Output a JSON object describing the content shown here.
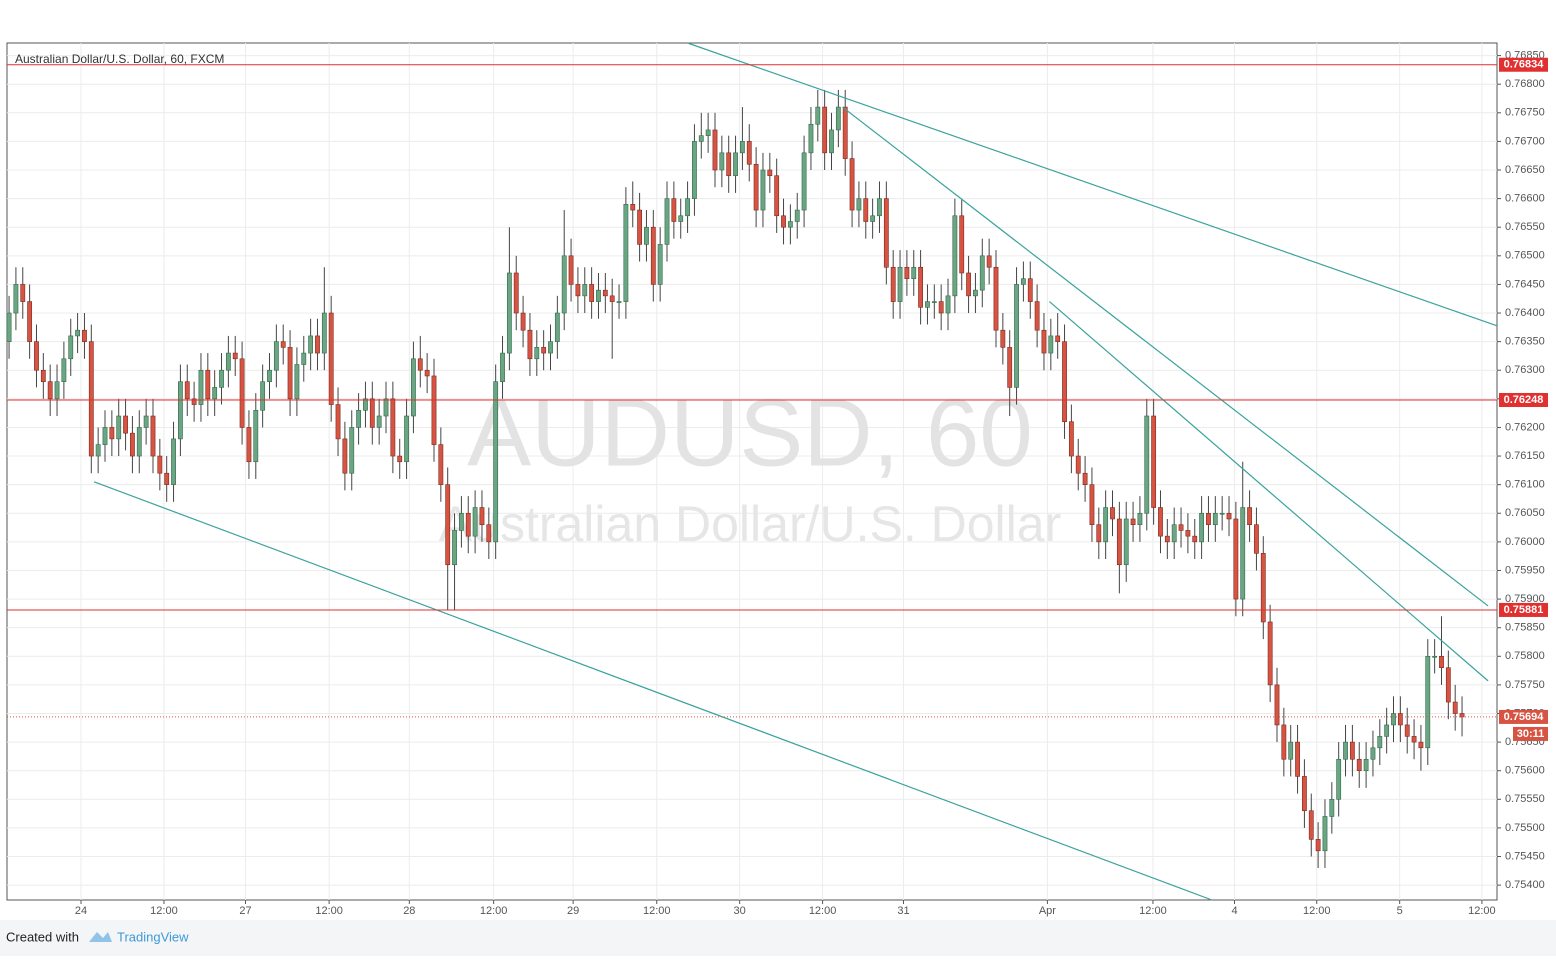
{
  "chart_data": {
    "type": "candlestick",
    "title": "Australian Dollar/U.S. Dollar, 60, FXCM",
    "watermark": "AUDUSD, 60",
    "watermark_subtitle": "Australian Dollar/U.S. Dollar",
    "footer_prefix": "Created with",
    "footer_brand": "TradingView",
    "up_color": "#6ba583",
    "down_color": "#d75442",
    "open": [
      0.7635,
      0.764,
      0.7645,
      0.7642,
      0.7635,
      0.763,
      0.7628,
      0.7625,
      0.7628,
      0.7632,
      0.7636,
      0.7637,
      0.7635,
      0.7615,
      0.7617,
      0.762,
      0.7618,
      0.7622,
      0.7619,
      0.7615,
      0.762,
      0.7622,
      0.7615,
      0.7612,
      0.761,
      0.7618,
      0.7628,
      0.7625,
      0.7624,
      0.763,
      0.7625,
      0.7627,
      0.763,
      0.7633,
      0.7632,
      0.762,
      0.7614,
      0.7623,
      0.7628,
      0.763,
      0.7635,
      0.7634,
      0.7625,
      0.7631,
      0.7633,
      0.7636,
      0.7633,
      0.764,
      0.7624,
      0.7618,
      0.7612,
      0.762,
      0.7623,
      0.7625,
      0.762,
      0.7622,
      0.7625,
      0.7615,
      0.7614,
      0.7622,
      0.7632,
      0.763,
      0.7629,
      0.7617,
      0.761,
      0.7596,
      0.7602,
      0.7605,
      0.7601,
      0.7606,
      0.7603,
      0.76,
      0.7628,
      0.7633,
      0.7647,
      0.764,
      0.7637,
      0.7632,
      0.7634,
      0.7633,
      0.7635,
      0.764,
      0.765,
      0.7645,
      0.7643,
      0.7645,
      0.7642,
      0.7644,
      0.7643,
      0.7642,
      0.7642,
      0.7659,
      0.7658,
      0.7652,
      0.7655,
      0.7645,
      0.7652,
      0.766,
      0.7656,
      0.7657,
      0.766,
      0.767,
      0.7671,
      0.7672,
      0.7665,
      0.7668,
      0.7664,
      0.7668,
      0.767,
      0.7666,
      0.7658,
      0.7665,
      0.7664,
      0.7657,
      0.7655,
      0.7656,
      0.7658,
      0.7668,
      0.7673,
      0.7676,
      0.7668,
      0.7672,
      0.7676,
      0.7667,
      0.7658,
      0.766,
      0.7656,
      0.7657,
      0.766,
      0.7648,
      0.7642,
      0.7648,
      0.7646,
      0.7648,
      0.7641,
      0.7642,
      0.7642,
      0.764,
      0.7643,
      0.7657,
      0.7647,
      0.7643,
      0.7644,
      0.765,
      0.7648,
      0.7637,
      0.7634,
      0.7627,
      0.7645,
      0.7646,
      0.7642,
      0.7637,
      0.7633,
      0.7636,
      0.7635,
      0.7621,
      0.7615,
      0.7612,
      0.761,
      0.7603,
      0.76,
      0.7606,
      0.7604,
      0.7596,
      0.7604,
      0.7603,
      0.7605,
      0.7622,
      0.7606,
      0.7601,
      0.76,
      0.7603,
      0.7602,
      0.7601,
      0.76,
      0.7605,
      0.7603,
      0.7605,
      0.7605,
      0.7604,
      0.759,
      0.7606,
      0.7603,
      0.7598,
      0.7586,
      0.7575,
      0.7568,
      0.7562,
      0.7565,
      0.7559,
      0.7553,
      0.7548,
      0.7546,
      0.7552,
      0.7555,
      0.7562,
      0.7565,
      0.7562,
      0.756,
      0.7562,
      0.7564,
      0.7566,
      0.7568,
      0.757,
      0.7568,
      0.7566,
      0.7565,
      0.7564,
      0.758,
      0.758,
      0.7578,
      0.7572,
      0.757
    ],
    "high": [
      0.7643,
      0.7648,
      0.7648,
      0.7645,
      0.7638,
      0.7633,
      0.7631,
      0.7631,
      0.7635,
      0.7639,
      0.764,
      0.764,
      0.7638,
      0.762,
      0.7623,
      0.7623,
      0.7625,
      0.7625,
      0.7622,
      0.7623,
      0.7625,
      0.7625,
      0.7618,
      0.7615,
      0.7621,
      0.7631,
      0.7631,
      0.7628,
      0.7633,
      0.7633,
      0.763,
      0.7633,
      0.7636,
      0.7636,
      0.7635,
      0.7623,
      0.7626,
      0.7631,
      0.7633,
      0.7638,
      0.7638,
      0.7637,
      0.7634,
      0.7636,
      0.7639,
      0.7639,
      0.7648,
      0.7643,
      0.7627,
      0.7621,
      0.7623,
      0.7626,
      0.7628,
      0.7628,
      0.7625,
      0.7628,
      0.7628,
      0.7618,
      0.7625,
      0.7635,
      0.7636,
      0.7633,
      0.7632,
      0.762,
      0.7613,
      0.7605,
      0.7608,
      0.7608,
      0.7609,
      0.7609,
      0.7606,
      0.7631,
      0.7636,
      0.7655,
      0.765,
      0.7643,
      0.764,
      0.7637,
      0.7637,
      0.7638,
      0.7643,
      0.7658,
      0.7653,
      0.7648,
      0.7648,
      0.7648,
      0.7647,
      0.7647,
      0.7646,
      0.7645,
      0.7662,
      0.7663,
      0.7661,
      0.7658,
      0.7658,
      0.7655,
      0.7663,
      0.7663,
      0.766,
      0.7663,
      0.7673,
      0.7675,
      0.7675,
      0.7675,
      0.7671,
      0.7671,
      0.7671,
      0.7676,
      0.7673,
      0.7669,
      0.7668,
      0.7668,
      0.7667,
      0.766,
      0.7659,
      0.7661,
      0.7671,
      0.7676,
      0.7679,
      0.7679,
      0.7675,
      0.7679,
      0.7679,
      0.767,
      0.7663,
      0.7663,
      0.766,
      0.7663,
      0.7663,
      0.7651,
      0.7651,
      0.7651,
      0.7651,
      0.7651,
      0.7645,
      0.7645,
      0.7645,
      0.7646,
      0.766,
      0.766,
      0.765,
      0.7647,
      0.7653,
      0.7653,
      0.7651,
      0.764,
      0.7637,
      0.7648,
      0.7649,
      0.7649,
      0.7645,
      0.764,
      0.7639,
      0.764,
      0.7638,
      0.7624,
      0.7618,
      0.7615,
      0.7613,
      0.7606,
      0.7609,
      0.7609,
      0.7607,
      0.7607,
      0.7607,
      0.7608,
      0.7625,
      0.7625,
      0.7609,
      0.7604,
      0.7606,
      0.7606,
      0.7605,
      0.7604,
      0.7608,
      0.7608,
      0.7608,
      0.7608,
      0.7608,
      0.7607,
      0.7614,
      0.7609,
      0.7606,
      0.7601,
      0.7589,
      0.7578,
      0.7571,
      0.7568,
      0.7568,
      0.7562,
      0.7556,
      0.7551,
      0.7555,
      0.7558,
      0.7565,
      0.7568,
      0.7568,
      0.7565,
      0.7565,
      0.7567,
      0.7569,
      0.7571,
      0.7573,
      0.7573,
      0.7571,
      0.7569,
      0.7568,
      0.7583,
      0.7583,
      0.7587,
      0.7581,
      0.7575,
      0.7573
    ],
    "low": [
      0.7632,
      0.7637,
      0.7639,
      0.7632,
      0.7627,
      0.7625,
      0.7622,
      0.7622,
      0.7625,
      0.7629,
      0.7633,
      0.7632,
      0.7612,
      0.7612,
      0.7614,
      0.7615,
      0.7615,
      0.7616,
      0.7612,
      0.7612,
      0.7617,
      0.7612,
      0.7609,
      0.7607,
      0.7607,
      0.7615,
      0.7622,
      0.7621,
      0.7621,
      0.7622,
      0.7622,
      0.7624,
      0.7627,
      0.7629,
      0.7617,
      0.7611,
      0.7611,
      0.762,
      0.7625,
      0.7627,
      0.7631,
      0.7622,
      0.7622,
      0.7628,
      0.763,
      0.763,
      0.763,
      0.7621,
      0.7615,
      0.7609,
      0.7609,
      0.7617,
      0.762,
      0.7617,
      0.7617,
      0.7619,
      0.7612,
      0.7611,
      0.7611,
      0.7619,
      0.7627,
      0.7626,
      0.7614,
      0.7607,
      0.7588,
      0.7588,
      0.7599,
      0.7598,
      0.7598,
      0.76,
      0.7597,
      0.7597,
      0.7625,
      0.763,
      0.7637,
      0.7634,
      0.7629,
      0.7629,
      0.763,
      0.763,
      0.7632,
      0.7637,
      0.7642,
      0.764,
      0.764,
      0.7639,
      0.7639,
      0.764,
      0.7632,
      0.7639,
      0.7639,
      0.7655,
      0.7649,
      0.7649,
      0.7642,
      0.7642,
      0.7649,
      0.7653,
      0.7653,
      0.7654,
      0.7657,
      0.7667,
      0.7668,
      0.7662,
      0.7662,
      0.7661,
      0.7661,
      0.7665,
      0.7663,
      0.7655,
      0.7655,
      0.7661,
      0.7654,
      0.7652,
      0.7652,
      0.7653,
      0.7655,
      0.7665,
      0.767,
      0.7665,
      0.7665,
      0.7669,
      0.7664,
      0.7655,
      0.7655,
      0.7653,
      0.7653,
      0.7654,
      0.7645,
      0.7639,
      0.7639,
      0.7643,
      0.7643,
      0.7638,
      0.7638,
      0.7639,
      0.7637,
      0.7637,
      0.764,
      0.7644,
      0.764,
      0.764,
      0.7641,
      0.7645,
      0.7634,
      0.7631,
      0.7622,
      0.7624,
      0.7642,
      0.7639,
      0.7634,
      0.763,
      0.763,
      0.7632,
      0.7618,
      0.7612,
      0.7609,
      0.7607,
      0.76,
      0.7597,
      0.7597,
      0.7601,
      0.7591,
      0.7593,
      0.76,
      0.76,
      0.7602,
      0.7603,
      0.7598,
      0.7597,
      0.7597,
      0.7599,
      0.7598,
      0.7597,
      0.7597,
      0.76,
      0.76,
      0.7602,
      0.7601,
      0.7587,
      0.7587,
      0.76,
      0.7595,
      0.7583,
      0.7572,
      0.7565,
      0.7559,
      0.7559,
      0.7556,
      0.755,
      0.7545,
      0.7543,
      0.7543,
      0.7549,
      0.7552,
      0.7559,
      0.7559,
      0.7557,
      0.7557,
      0.7559,
      0.7561,
      0.7563,
      0.7565,
      0.7565,
      0.7563,
      0.7562,
      0.756,
      0.7561,
      0.7577,
      0.7575,
      0.7569,
      0.7567,
      0.7566
    ],
    "close": [
      0.764,
      0.7645,
      0.7642,
      0.7635,
      0.763,
      0.7628,
      0.7625,
      0.7628,
      0.7632,
      0.7636,
      0.7637,
      0.7635,
      0.7615,
      0.7617,
      0.762,
      0.7618,
      0.7622,
      0.7619,
      0.7615,
      0.762,
      0.7622,
      0.7615,
      0.7612,
      0.761,
      0.7618,
      0.7628,
      0.7625,
      0.7624,
      0.763,
      0.7625,
      0.7627,
      0.763,
      0.7633,
      0.7632,
      0.762,
      0.7614,
      0.7623,
      0.7628,
      0.763,
      0.7635,
      0.7634,
      0.7625,
      0.7631,
      0.7633,
      0.7636,
      0.7633,
      0.764,
      0.7624,
      0.7618,
      0.7612,
      0.762,
      0.7623,
      0.7625,
      0.762,
      0.7622,
      0.7625,
      0.7615,
      0.7614,
      0.7622,
      0.7632,
      0.763,
      0.7629,
      0.7617,
      0.761,
      0.7596,
      0.7602,
      0.7605,
      0.7601,
      0.7606,
      0.7603,
      0.76,
      0.7628,
      0.7633,
      0.7647,
      0.764,
      0.7637,
      0.7632,
      0.7634,
      0.7633,
      0.7635,
      0.764,
      0.765,
      0.7645,
      0.7643,
      0.7645,
      0.7642,
      0.7644,
      0.7643,
      0.7642,
      0.7642,
      0.7659,
      0.7658,
      0.7652,
      0.7655,
      0.7645,
      0.7652,
      0.766,
      0.7656,
      0.7657,
      0.766,
      0.767,
      0.7671,
      0.7672,
      0.7665,
      0.7668,
      0.7664,
      0.7668,
      0.767,
      0.7666,
      0.7658,
      0.7665,
      0.7664,
      0.7657,
      0.7655,
      0.7656,
      0.7658,
      0.7668,
      0.7673,
      0.7676,
      0.7668,
      0.7672,
      0.7676,
      0.7667,
      0.7658,
      0.766,
      0.7656,
      0.7657,
      0.766,
      0.7648,
      0.7642,
      0.7648,
      0.7646,
      0.7648,
      0.7641,
      0.7642,
      0.7642,
      0.764,
      0.7643,
      0.7657,
      0.7647,
      0.7643,
      0.7644,
      0.765,
      0.7648,
      0.7637,
      0.7634,
      0.7627,
      0.7645,
      0.7646,
      0.7642,
      0.7637,
      0.7633,
      0.7636,
      0.7635,
      0.7621,
      0.7615,
      0.7612,
      0.761,
      0.7603,
      0.76,
      0.7606,
      0.7604,
      0.7596,
      0.7604,
      0.7603,
      0.7605,
      0.7622,
      0.7606,
      0.7601,
      0.76,
      0.7603,
      0.7602,
      0.7601,
      0.76,
      0.7605,
      0.7603,
      0.7605,
      0.7605,
      0.7604,
      0.759,
      0.7606,
      0.7603,
      0.7598,
      0.7586,
      0.7575,
      0.7568,
      0.7562,
      0.7565,
      0.7559,
      0.7553,
      0.7548,
      0.7546,
      0.7552,
      0.7555,
      0.7562,
      0.7565,
      0.7562,
      0.756,
      0.7562,
      0.7564,
      0.7566,
      0.7568,
      0.757,
      0.7568,
      0.7566,
      0.7565,
      0.7564,
      0.758,
      0.758,
      0.7578,
      0.7572,
      0.757,
      0.75694
    ],
    "xlim": [
      -0.3,
      217.1
    ],
    "xticks": [
      {
        "value": 10.5,
        "label": "24"
      },
      {
        "value": 22.6,
        "label": "12:00"
      },
      {
        "value": 34.5,
        "label": "27"
      },
      {
        "value": 46.7,
        "label": "12:00"
      },
      {
        "value": 58.4,
        "label": "28"
      },
      {
        "value": 70.7,
        "label": "12:00"
      },
      {
        "value": 82.3,
        "label": "29"
      },
      {
        "value": 94.5,
        "label": "12:00"
      },
      {
        "value": 106.6,
        "label": "30"
      },
      {
        "value": 118.7,
        "label": "12:00"
      },
      {
        "value": 130.5,
        "label": "31"
      },
      {
        "value": 151.5,
        "label": "Apr"
      },
      {
        "value": 166.9,
        "label": "12:00"
      },
      {
        "value": 178.8,
        "label": "4"
      },
      {
        "value": 190.8,
        "label": "12:00"
      },
      {
        "value": 202.9,
        "label": "5"
      },
      {
        "value": 214.9,
        "label": "12:00"
      }
    ],
    "ylim": [
      0.75374,
      0.76872
    ],
    "yticks": [
      {
        "value": 0.754,
        "label": "0.75400"
      },
      {
        "value": 0.7545,
        "label": "0.75450"
      },
      {
        "value": 0.755,
        "label": "0.75500"
      },
      {
        "value": 0.7555,
        "label": "0.75550"
      },
      {
        "value": 0.756,
        "label": "0.75600"
      },
      {
        "value": 0.7565,
        "label": "0.75650"
      },
      {
        "value": 0.757,
        "label": "0.75700"
      },
      {
        "value": 0.7575,
        "label": "0.75750"
      },
      {
        "value": 0.758,
        "label": "0.75800"
      },
      {
        "value": 0.7585,
        "label": "0.75850"
      },
      {
        "value": 0.759,
        "label": "0.75900"
      },
      {
        "value": 0.7595,
        "label": "0.75950"
      },
      {
        "value": 0.76,
        "label": "0.76000"
      },
      {
        "value": 0.7605,
        "label": "0.76050"
      },
      {
        "value": 0.761,
        "label": "0.76100"
      },
      {
        "value": 0.7615,
        "label": "0.76150"
      },
      {
        "value": 0.762,
        "label": "0.76200"
      },
      {
        "value": 0.7625,
        "label": "0.76250"
      },
      {
        "value": 0.763,
        "label": "0.76300"
      },
      {
        "value": 0.7635,
        "label": "0.76350"
      },
      {
        "value": 0.764,
        "label": "0.76400"
      },
      {
        "value": 0.7645,
        "label": "0.76450"
      },
      {
        "value": 0.765,
        "label": "0.76500"
      },
      {
        "value": 0.7655,
        "label": "0.76550"
      },
      {
        "value": 0.766,
        "label": "0.76600"
      },
      {
        "value": 0.7665,
        "label": "0.76650"
      },
      {
        "value": 0.767,
        "label": "0.76700"
      },
      {
        "value": 0.7675,
        "label": "0.76750"
      },
      {
        "value": 0.768,
        "label": "0.76800"
      },
      {
        "value": 0.7685,
        "label": "0.76850"
      }
    ],
    "grid": true,
    "levels": [
      0.76834,
      0.76248,
      0.75881
    ],
    "level_color": "#e03030",
    "last_price": 0.75694,
    "countdown": "30:11",
    "trendline_color": "#3aa39c",
    "trendlines": [
      [
        99.0,
        0.76872,
        217.0,
        0.76378
      ],
      [
        121.6,
        0.7676,
        215.8,
        0.75888
      ],
      [
        151.8,
        0.7642,
        215.8,
        0.75757
      ],
      [
        12.4,
        0.76105,
        175.5,
        0.75374
      ]
    ]
  }
}
